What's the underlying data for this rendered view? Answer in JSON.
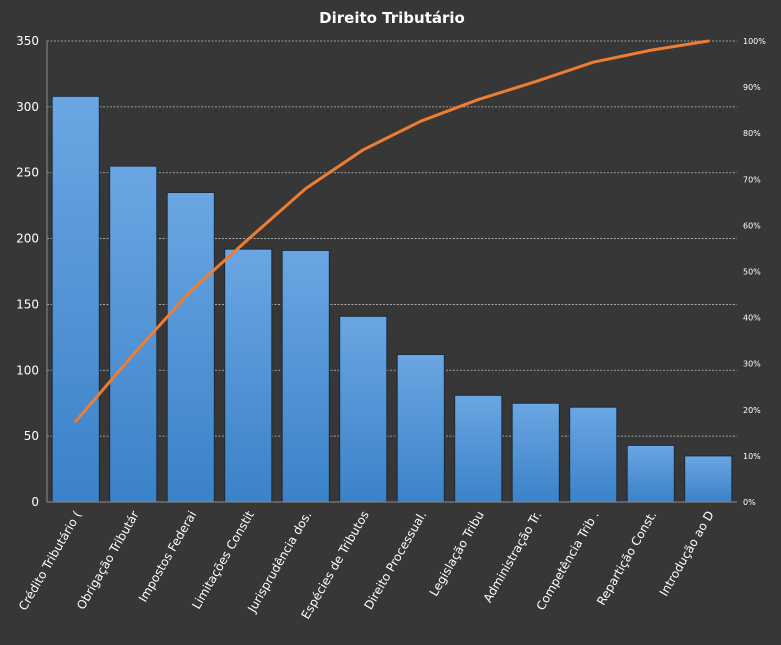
{
  "chart_data": {
    "type": "bar",
    "title": "Direito  Tributário",
    "categories": [
      "Crédito Tributário (",
      "Obrigação Tributár",
      "Impostos Federai",
      "Limitações Constit",
      "Jurisprudência dos.",
      "Espécies de Tributos",
      "Direito Processual.",
      "Legislação Tribu",
      "Administração Tr.",
      "Competência Trib .",
      "Repartição Const.",
      "Introdução ao D"
    ],
    "series": [
      {
        "type": "bar",
        "values": [
          308,
          255,
          235,
          192,
          191,
          141,
          112,
          81,
          75,
          72,
          43,
          35
        ]
      },
      {
        "type": "line",
        "axis": "right",
        "values": [
          0.175,
          0.32,
          0.458,
          0.57,
          0.68,
          0.764,
          0.826,
          0.873,
          0.912,
          0.954,
          0.98,
          1.0
        ]
      }
    ],
    "ylim": [
      0,
      350
    ],
    "yticks": [
      "0",
      "50",
      "100",
      "150",
      "200",
      "250",
      "300",
      "350"
    ],
    "y2lim": [
      0,
      1
    ],
    "y2ticks": [
      "0%",
      "10%",
      "20%",
      "30%",
      "40%",
      "50%",
      "60%",
      "70%",
      "80%",
      "90%",
      "100%"
    ],
    "grid": true,
    "colors": {
      "background": "#373737",
      "bar_top": "#6aa6e3",
      "bar_bottom": "#3b82c8",
      "bar_stroke": "#1a2a3a",
      "line": "#ee7d31",
      "grid": "#bdbdbd",
      "text": "#ffffff"
    }
  }
}
